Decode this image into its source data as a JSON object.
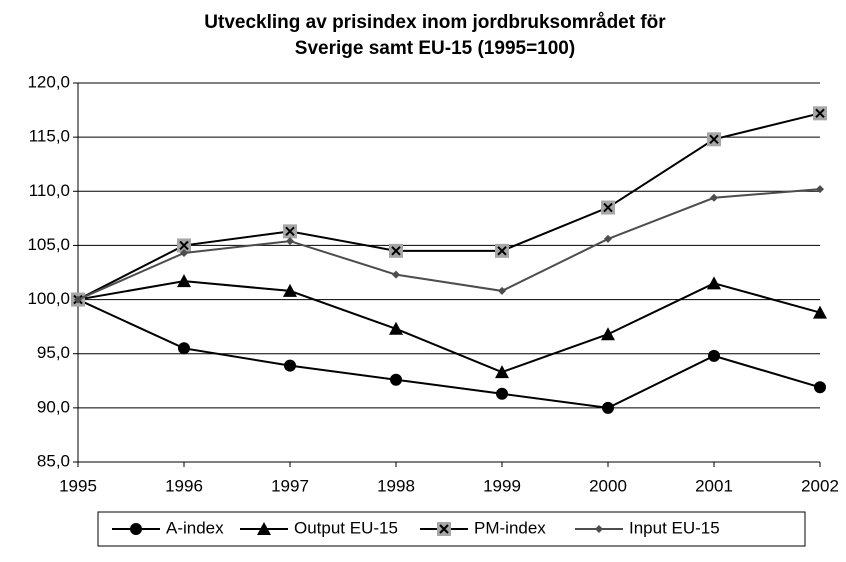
{
  "chart_data": {
    "type": "line",
    "title": [
      "Utveckling av prisindex inom jordbruksområdet för",
      "Sverige samt EU-15 (1995=100)"
    ],
    "x": [
      1995,
      1996,
      1997,
      1998,
      1999,
      2000,
      2001,
      2002
    ],
    "xlim": [
      1995,
      2002
    ],
    "xticks": [
      1995,
      1996,
      1997,
      1998,
      1999,
      2000,
      2001,
      2002
    ],
    "ylim": [
      85,
      120
    ],
    "yticks": [
      {
        "value": 85,
        "label": "85,0"
      },
      {
        "value": 90,
        "label": "90,0"
      },
      {
        "value": 95,
        "label": "95,0"
      },
      {
        "value": 100,
        "label": "100,0"
      },
      {
        "value": 105,
        "label": "105,0"
      },
      {
        "value": 110,
        "label": "110,0"
      },
      {
        "value": 115,
        "label": "115,0"
      },
      {
        "value": 120,
        "label": "120,0"
      }
    ],
    "grid": true,
    "legend": "bottom",
    "series": [
      {
        "name": "A-index",
        "color": "#000000",
        "marker": "circle",
        "values": [
          100,
          95.5,
          93.9,
          92.6,
          91.3,
          90.0,
          94.8,
          91.9
        ]
      },
      {
        "name": "Output EU-15",
        "color": "#000000",
        "marker": "triangle",
        "values": [
          100,
          101.7,
          100.8,
          97.3,
          93.3,
          96.8,
          101.5,
          98.8
        ]
      },
      {
        "name": "PM-index",
        "color": "#000000",
        "marker": "square-x",
        "values": [
          100,
          105.0,
          106.3,
          104.5,
          104.5,
          108.5,
          114.8,
          117.2
        ]
      },
      {
        "name": "Input EU-15",
        "color": "#4d4d4d",
        "marker": "diamond",
        "values": [
          100,
          104.3,
          105.4,
          102.3,
          100.8,
          105.6,
          109.4,
          110.2
        ]
      }
    ]
  }
}
